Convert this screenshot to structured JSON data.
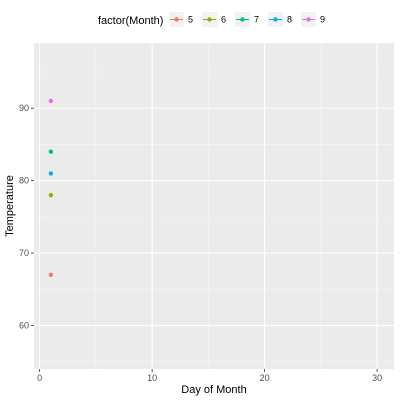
{
  "chart_data": {
    "type": "scatter",
    "xlabel": "Day of Month",
    "ylabel": "Temperature",
    "xlim": [
      -0.5,
      31.5
    ],
    "ylim": [
      54,
      99
    ],
    "xticks": [
      0,
      10,
      20,
      30
    ],
    "xtick_labels": [
      "0",
      "10",
      "20",
      "30"
    ],
    "xminor": [
      5,
      15,
      25
    ],
    "yticks": [
      60,
      70,
      80,
      90
    ],
    "ytick_labels": [
      "60",
      "70",
      "80",
      "90"
    ],
    "yminor": [
      55,
      65,
      75,
      85,
      95
    ],
    "grid": true,
    "legend": {
      "title": "factor(Month)",
      "placement": "top",
      "entries": [
        "5",
        "6",
        "7",
        "8",
        "9"
      ]
    },
    "series": [
      {
        "name": "5",
        "color": "#F8766D",
        "points": [
          {
            "x": 1,
            "y": 67
          }
        ]
      },
      {
        "name": "6",
        "color": "#A3A500",
        "points": [
          {
            "x": 1,
            "y": 78
          }
        ]
      },
      {
        "name": "7",
        "color": "#00BF7D",
        "points": [
          {
            "x": 1,
            "y": 84
          }
        ]
      },
      {
        "name": "8",
        "color": "#00B0F6",
        "points": [
          {
            "x": 1,
            "y": 81
          }
        ]
      },
      {
        "name": "9",
        "color": "#E76BF3",
        "points": [
          {
            "x": 1,
            "y": 91
          }
        ]
      }
    ],
    "colors": {
      "panel_background": "#EBEBEB",
      "grid_major": "#FFFFFF",
      "grid_minor": "#F5F5F5"
    }
  }
}
